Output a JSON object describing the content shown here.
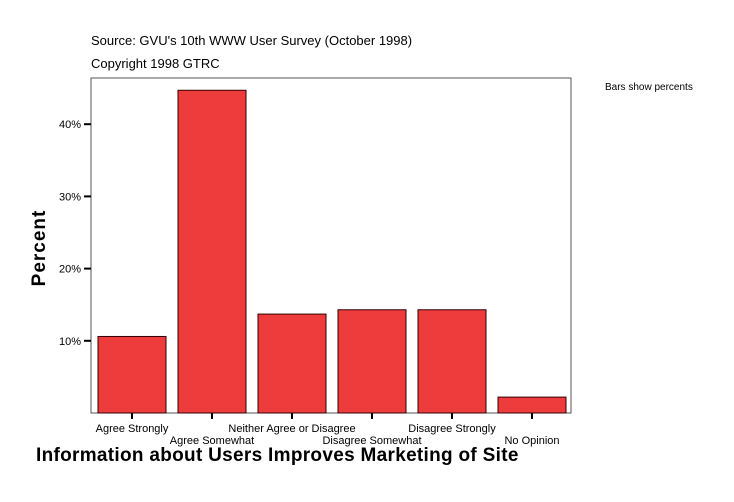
{
  "source": "Source: GVU's 10th WWW User Survey (October 1998)",
  "copyright": "Copyright 1998 GTRC",
  "note": "Bars show percents",
  "chart_data": {
    "type": "bar",
    "title": "",
    "xlabel": "Information about Users Improves Marketing of Site",
    "ylabel": "Percent",
    "categories": [
      "Agree Strongly",
      "Agree Somewhat",
      "Neither Agree or Disagree",
      "Disagree Somewhat",
      "Disagree Strongly",
      "No Opinion"
    ],
    "values": [
      10.6,
      44.7,
      13.7,
      14.3,
      14.3,
      2.2
    ],
    "yticks": [
      10,
      20,
      30,
      40
    ],
    "ytick_labels": [
      "10%",
      "20%",
      "30%",
      "40%"
    ],
    "ylim": [
      0,
      46.4
    ],
    "grid": false,
    "bar_color": "#ee3b3b"
  }
}
